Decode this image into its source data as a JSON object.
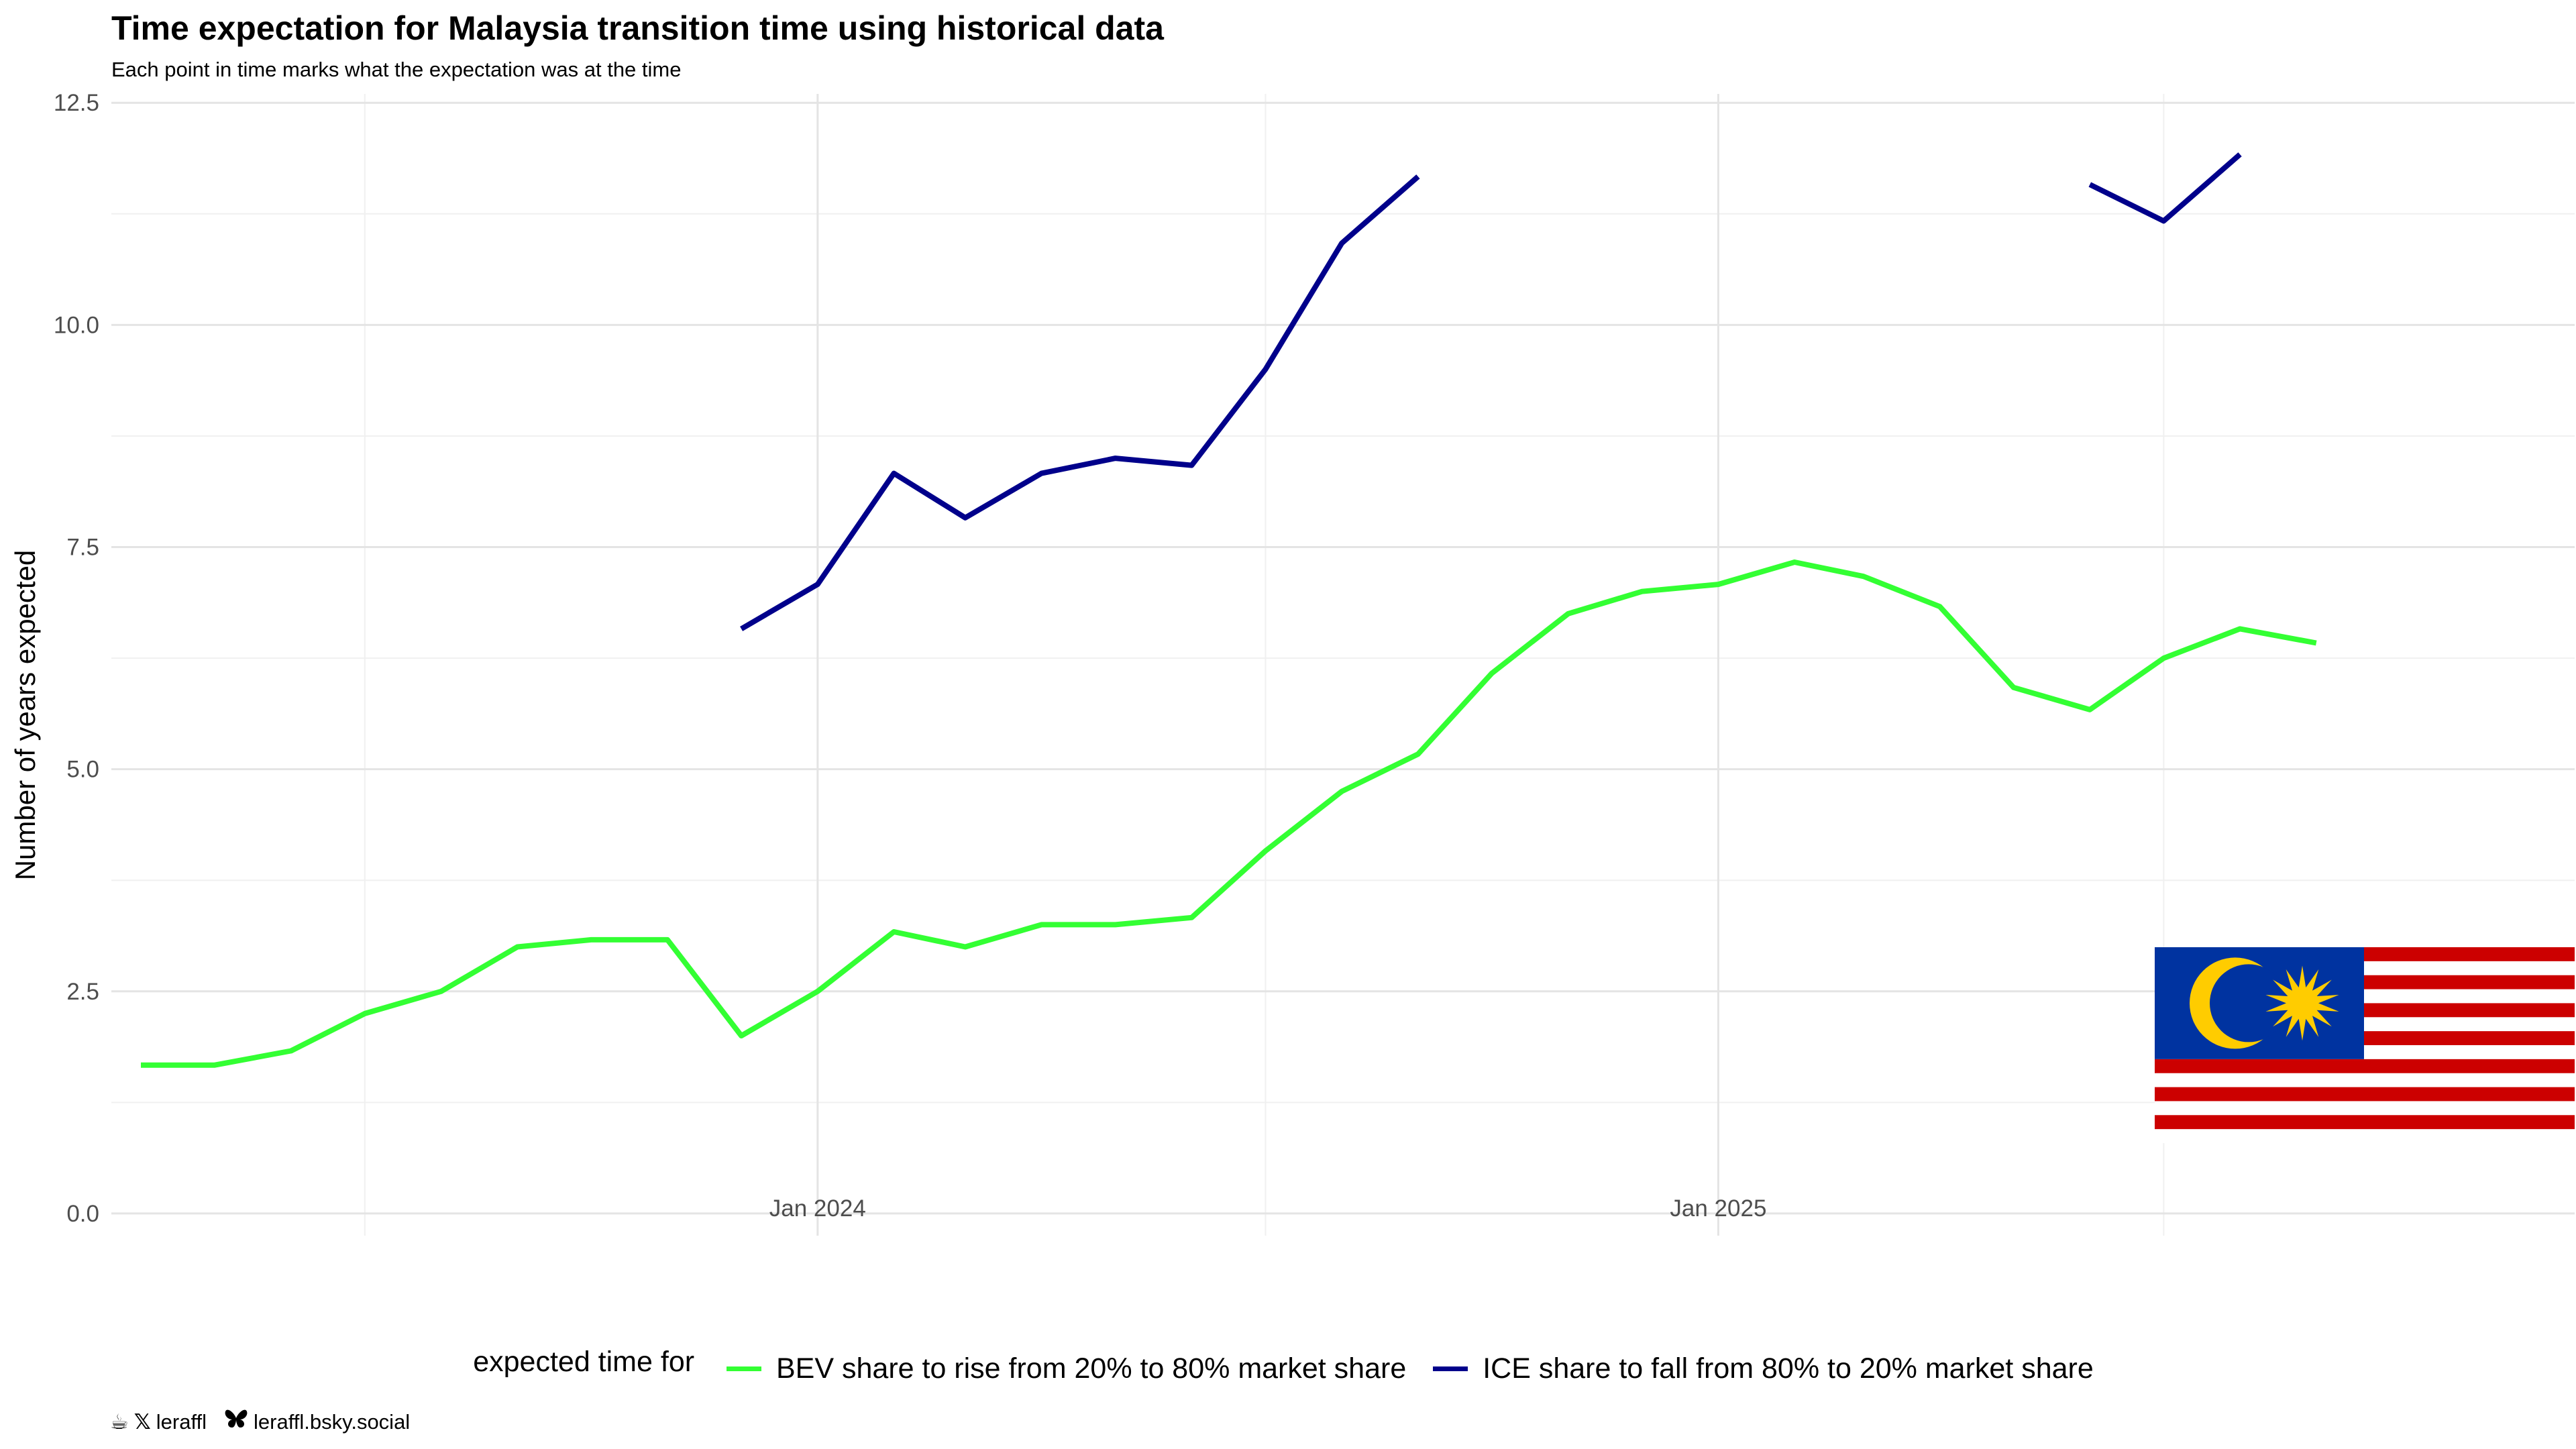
{
  "chart_data": {
    "type": "line",
    "title": "Time expectation for Malaysia transition time using historical data",
    "subtitle": "Each point in time marks what the expectation was at the time",
    "ylabel": "Number of years expected",
    "xlabel": "",
    "ylim": [
      -0.25,
      12.6
    ],
    "y_ticks": [
      0.0,
      2.5,
      5.0,
      7.5,
      10.0,
      12.5
    ],
    "y_tick_labels": [
      "0.0",
      "2.5",
      "5.0",
      "7.5",
      "10.0",
      "12.5"
    ],
    "x_ticks": [
      "2024-01-01",
      "2025-01-01"
    ],
    "x_tick_labels": [
      "Jan 2024",
      "Jan 2025"
    ],
    "xlim": [
      "2023-03-20",
      "2025-12-15"
    ],
    "grid": true,
    "legend_title": "expected time for",
    "legend_position": "bottom",
    "series": [
      {
        "name": "BEV share to rise from 20% to 80% market share",
        "color": "#33ff33",
        "x": [
          "2023-04-01",
          "2023-05-01",
          "2023-06-01",
          "2023-07-01",
          "2023-08-01",
          "2023-09-01",
          "2023-10-01",
          "2023-11-01",
          "2023-12-01",
          "2024-01-01",
          "2024-02-01",
          "2024-03-01",
          "2024-04-01",
          "2024-05-01",
          "2024-06-01",
          "2024-07-01",
          "2024-08-01",
          "2024-09-01",
          "2024-10-01",
          "2024-11-01",
          "2024-12-01",
          "2025-01-01",
          "2025-02-01",
          "2025-03-01",
          "2025-04-01",
          "2025-05-01",
          "2025-06-01",
          "2025-07-01",
          "2025-08-01",
          "2025-09-01"
        ],
        "values": [
          1.67,
          1.67,
          1.83,
          2.25,
          2.5,
          3.0,
          3.08,
          3.08,
          2.0,
          2.5,
          3.17,
          3.0,
          3.25,
          3.25,
          3.33,
          4.08,
          4.75,
          5.17,
          6.08,
          6.75,
          7.0,
          7.08,
          7.33,
          7.17,
          6.83,
          5.92,
          5.67,
          6.25,
          6.58,
          6.42
        ]
      },
      {
        "name": "ICE share to fall from 80% to 20% market share",
        "color": "#00008b",
        "x": [
          "2023-12-01",
          "2024-01-01",
          "2024-02-01",
          "2024-03-01",
          "2024-04-01",
          "2024-05-01",
          "2024-06-01",
          "2024-07-01",
          "2024-08-01",
          "2024-09-01",
          null,
          "2025-06-01",
          "2025-07-01",
          "2025-08-01"
        ],
        "values": [
          6.58,
          7.08,
          8.33,
          7.83,
          8.33,
          8.5,
          8.42,
          9.5,
          10.92,
          11.67,
          null,
          11.58,
          11.17,
          11.92
        ]
      }
    ]
  },
  "caption": {
    "handle_x": "leraffl",
    "handle_bsky": "leraffl.bsky.social"
  },
  "flag": {
    "blue": "#0033a0",
    "red": "#cc0000",
    "white": "#ffffff",
    "yellow": "#ffcc00"
  }
}
